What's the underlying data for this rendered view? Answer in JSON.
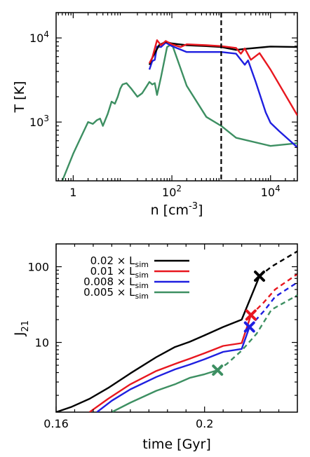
{
  "chart_data": [
    {
      "type": "line",
      "xlabel": "n [cm",
      "xlabel_sup": "-3",
      "xlabel_end": "]",
      "ylabel": "T [K]",
      "xscale": "log",
      "yscale": "log",
      "xlim": [
        0.45,
        35000
      ],
      "ylim": [
        200,
        20000
      ],
      "x_ticks": [
        {
          "value": 1,
          "label": "1"
        },
        {
          "value": 100,
          "label": "10",
          "sup": "2"
        },
        {
          "value": 10000,
          "label": "10",
          "sup": "4"
        }
      ],
      "y_ticks": [
        {
          "value": 1000,
          "label": "10",
          "sup": "3"
        },
        {
          "value": 10000,
          "label": "10",
          "sup": "4"
        }
      ],
      "vline": {
        "x": 1000,
        "style": "dashed",
        "color": "#000000"
      },
      "series": [
        {
          "color": "#000000",
          "x": [
            35,
            40,
            55,
            75,
            100,
            200,
            500,
            1000,
            2000,
            3000,
            10000,
            35000
          ],
          "y": [
            4800,
            5800,
            8200,
            9000,
            8600,
            8200,
            8000,
            7800,
            7200,
            7400,
            7900,
            7800
          ]
        },
        {
          "color": "#e8171f",
          "x": [
            35,
            40,
            50,
            60,
            75,
            100,
            150,
            200,
            500,
            1000,
            2000,
            2500,
            3000,
            4000,
            6000,
            10000,
            35000
          ],
          "y": [
            5000,
            5800,
            9400,
            8200,
            9200,
            8400,
            7800,
            8400,
            8200,
            8000,
            7600,
            6500,
            7500,
            5500,
            6600,
            4200,
            1200
          ]
        },
        {
          "color": "#1f1fe0",
          "x": [
            35,
            40,
            45,
            50,
            60,
            75,
            100,
            200,
            500,
            1000,
            2000,
            3000,
            3500,
            5000,
            8000,
            10000,
            15000,
            35000
          ],
          "y": [
            4200,
            5300,
            5500,
            7900,
            7800,
            8800,
            8000,
            6800,
            6800,
            6800,
            6500,
            4800,
            5400,
            3000,
            1300,
            980,
            780,
            500
          ]
        },
        {
          "color": "#3d8f62",
          "x": [
            0.6,
            1,
            1.5,
            2,
            2.5,
            3,
            3.5,
            4,
            5,
            6,
            7,
            8,
            9,
            10,
            12,
            15,
            20,
            25,
            30,
            35,
            40,
            45,
            50,
            60,
            80,
            100,
            200,
            500,
            1000,
            2000,
            10000,
            35000
          ],
          "y": [
            200,
            420,
            700,
            1000,
            950,
            1050,
            1100,
            900,
            1250,
            1750,
            1650,
            2000,
            2500,
            2800,
            2900,
            2500,
            2000,
            2200,
            2600,
            3000,
            2800,
            2900,
            2100,
            3400,
            7800,
            8500,
            2700,
            1150,
            900,
            650,
            520,
            560
          ]
        }
      ]
    },
    {
      "type": "line",
      "xlabel": "time [Gyr]",
      "ylabel": "J",
      "ylabel_sub": "21",
      "yscale": "log",
      "xlim": [
        0.16,
        0.225
      ],
      "ylim": [
        1.2,
        200
      ],
      "x_ticks": [
        {
          "value": 0.16,
          "label": "0.16"
        },
        {
          "value": 0.2,
          "label": "0.2"
        }
      ],
      "y_ticks": [
        {
          "value": 10,
          "label": "10"
        },
        {
          "value": 100,
          "label": "100"
        }
      ],
      "legend": {
        "position": "top-left",
        "entries": [
          {
            "prefix": "0.02 × L",
            "sub": "sim",
            "color": "#000000"
          },
          {
            "prefix": "0.01 × L",
            "sub": "sim",
            "color": "#e8171f"
          },
          {
            "prefix": "0.008 × L",
            "sub": "sim",
            "color": "#1f1fe0"
          },
          {
            "prefix": "0.005 × L",
            "sub": "sim",
            "color": "#3d8f62"
          }
        ]
      },
      "series": [
        {
          "color": "#000000",
          "x": [
            0.16,
            0.164,
            0.169,
            0.174,
            0.18,
            0.187,
            0.192,
            0.196,
            0.2,
            0.205,
            0.21,
            0.2148
          ],
          "y": [
            1.2,
            1.4,
            1.8,
            2.5,
            3.9,
            6.4,
            8.7,
            10.2,
            12.4,
            16,
            20,
            75
          ],
          "x_dashed": [
            0.2148,
            0.218,
            0.225
          ],
          "y_dashed": [
            75,
            100,
            160
          ],
          "marker": {
            "x": 0.2148,
            "y": 75
          }
        },
        {
          "color": "#e8171f",
          "x": [
            0.169,
            0.174,
            0.18,
            0.187,
            0.192,
            0.196,
            0.2,
            0.205,
            0.21,
            0.2125
          ],
          "y": [
            1.2,
            1.8,
            2.8,
            4.2,
            5.2,
            6.1,
            7.2,
            9,
            9.8,
            23
          ],
          "x_dashed": [
            0.2125,
            0.216,
            0.219,
            0.225
          ],
          "y_dashed": [
            23,
            34,
            50,
            80
          ],
          "marker": {
            "x": 0.2125,
            "y": 23
          }
        },
        {
          "color": "#1f1fe0",
          "x": [
            0.171,
            0.175,
            0.18,
            0.187,
            0.192,
            0.196,
            0.2,
            0.205,
            0.21,
            0.2121
          ],
          "y": [
            1.2,
            1.7,
            2.4,
            3.5,
            4.4,
            5.1,
            6,
            7.5,
            8.2,
            16
          ],
          "x_dashed": [
            0.2121,
            0.216,
            0.219,
            0.225
          ],
          "y_dashed": [
            16,
            26,
            40,
            62
          ],
          "marker": {
            "x": 0.2121,
            "y": 16
          }
        },
        {
          "color": "#3d8f62",
          "x": [
            0.175,
            0.18,
            0.187,
            0.192,
            0.196,
            0.2,
            0.2035
          ],
          "y": [
            1.2,
            1.6,
            2.3,
            2.8,
            3.4,
            3.8,
            4.3
          ],
          "x_dashed": [
            0.2035,
            0.206,
            0.21,
            0.214,
            0.218,
            0.225
          ],
          "y_dashed": [
            4.3,
            5.2,
            7.8,
            13,
            27,
            42
          ],
          "marker": {
            "x": 0.2035,
            "y": 4.3
          }
        }
      ]
    }
  ]
}
